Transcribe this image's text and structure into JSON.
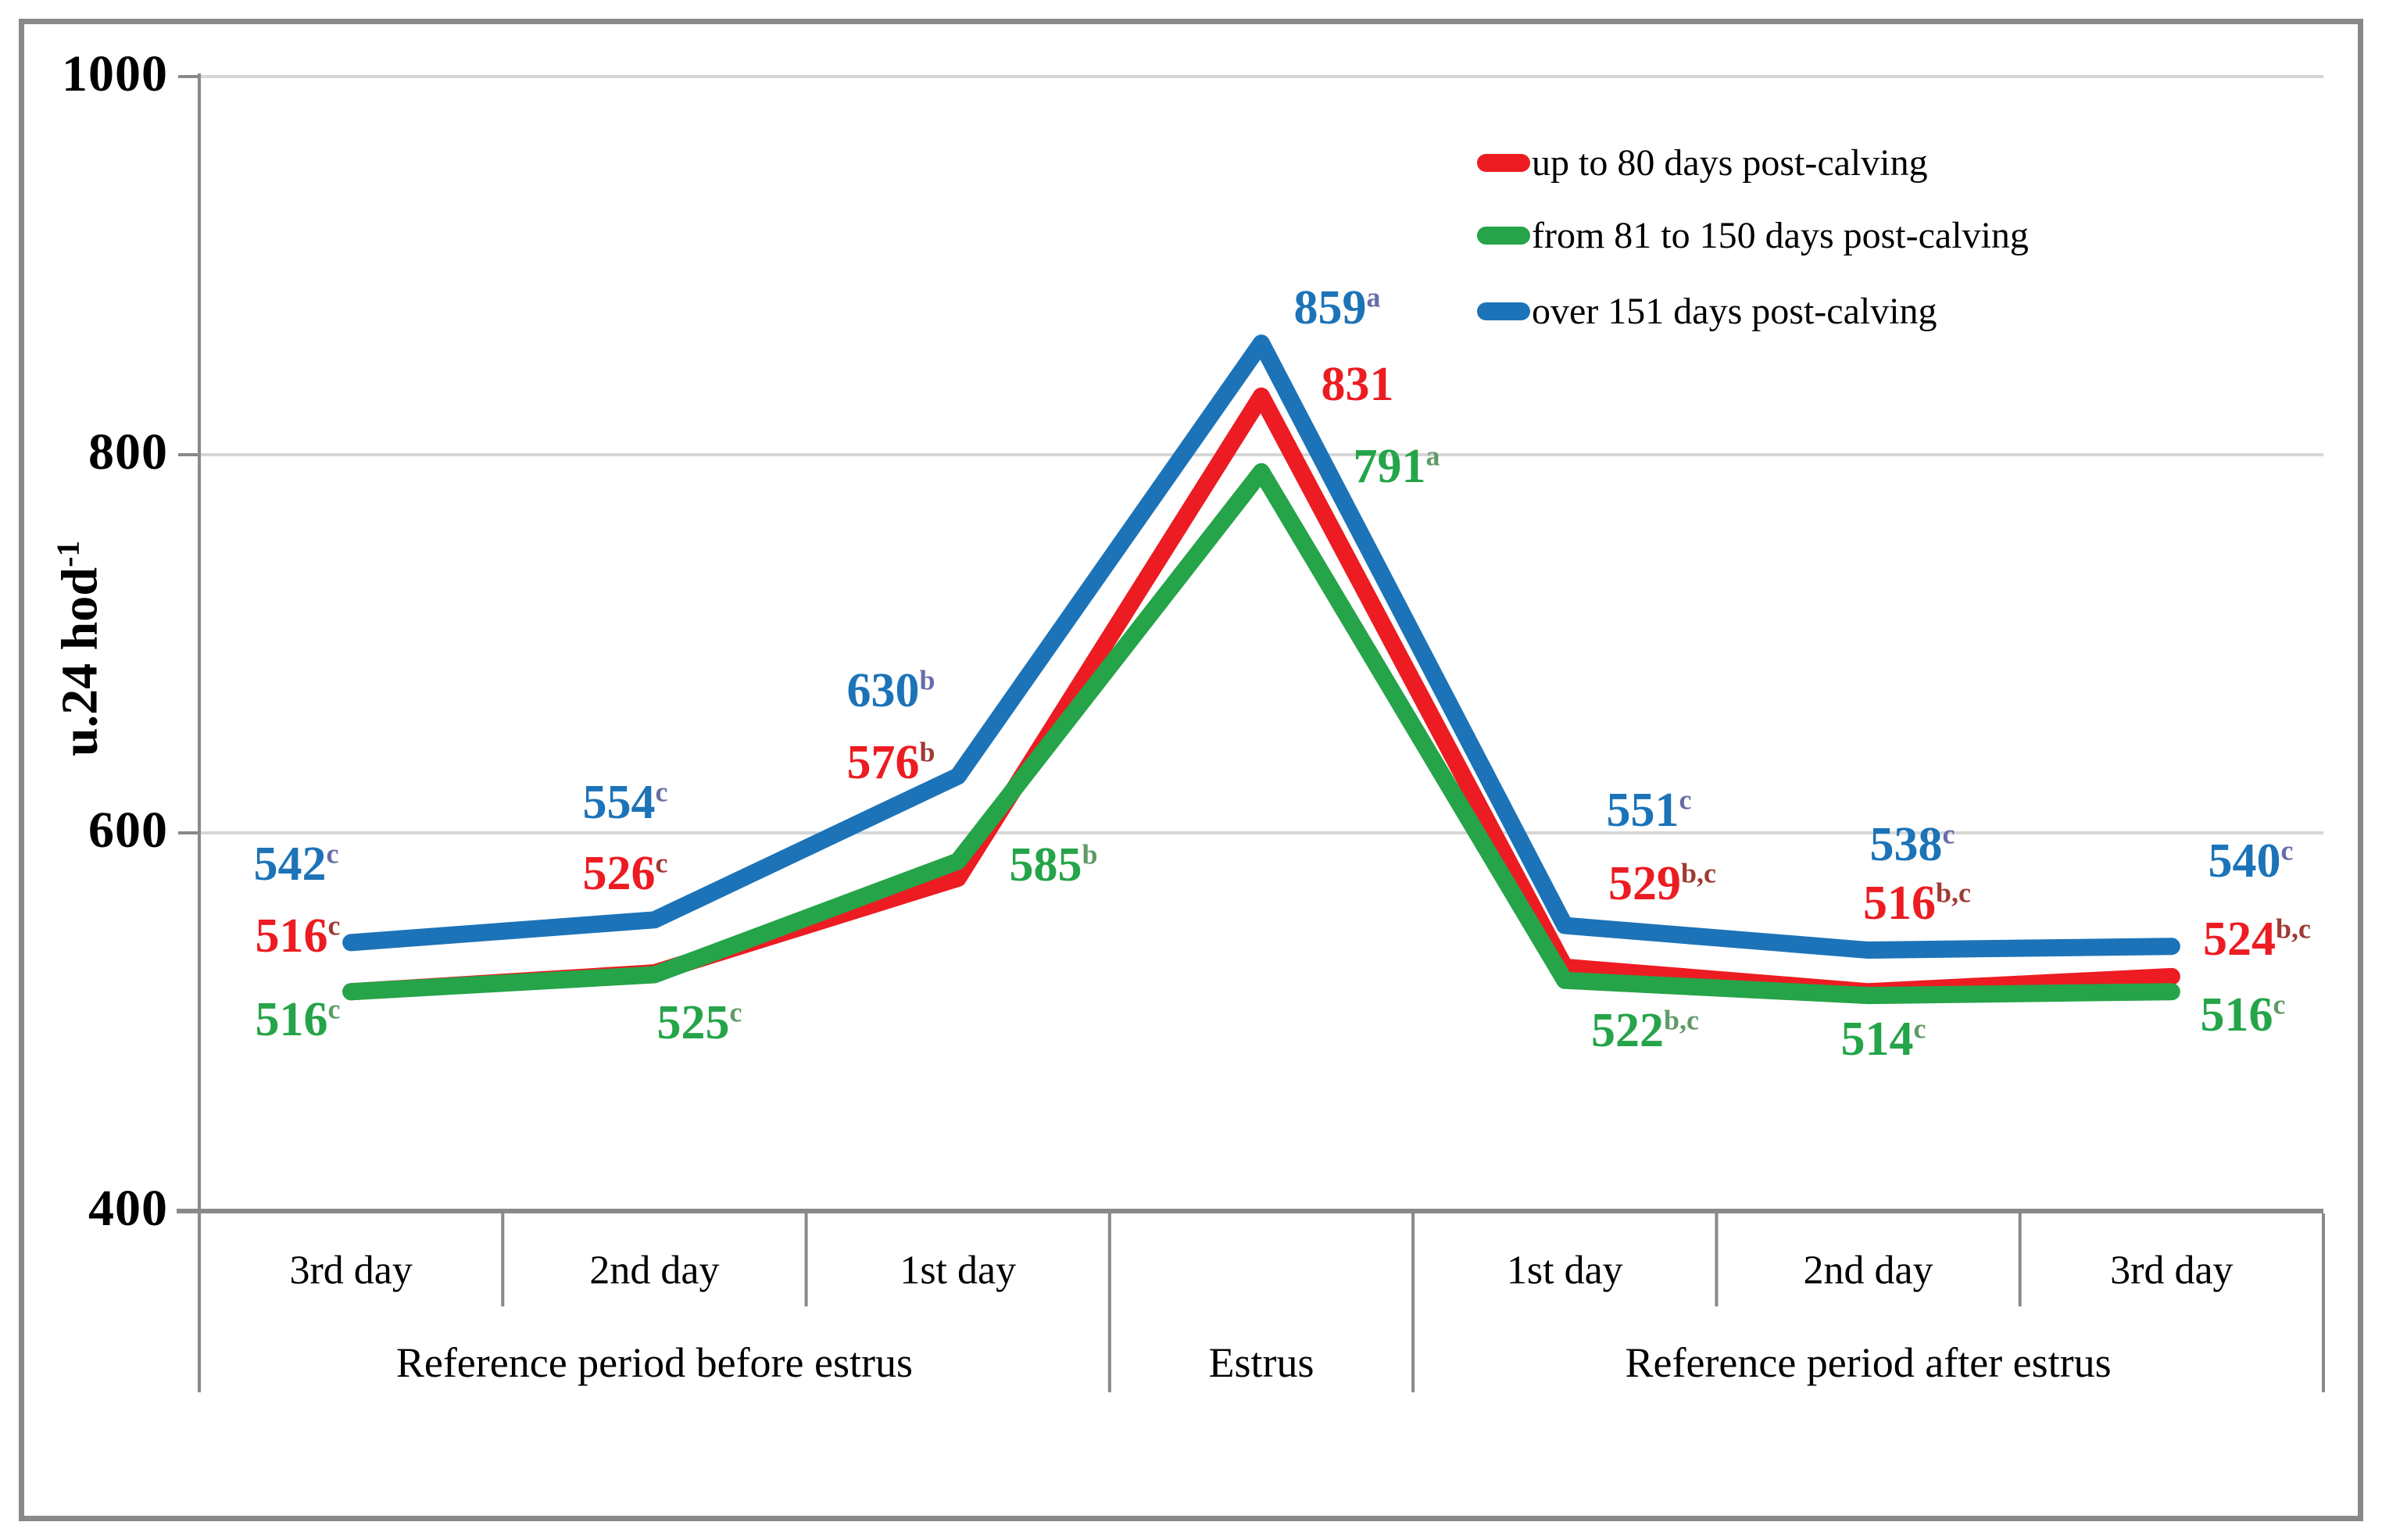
{
  "figure": {
    "background": "#ffffff",
    "border_color": "#898989"
  },
  "y_axis": {
    "title_base": "u.24 hod",
    "title_sup": "-1",
    "min": 400,
    "max": 1000
  },
  "chart_data": {
    "type": "line",
    "title": "",
    "ylabel": "u.24 hod-1",
    "ylim": [
      400,
      1000
    ],
    "yticks": [
      1000,
      800,
      600,
      400
    ],
    "grid": "horizontal gridlines on",
    "legend_position": "inside top-right",
    "categories": [
      "3rd day",
      "2nd day",
      "1st day",
      "",
      "1st day",
      "2nd day",
      "3rd day"
    ],
    "category_groups": [
      {
        "label": "Reference period before estrus",
        "span": [
          0,
          2
        ]
      },
      {
        "label": "Estrus",
        "span": [
          3,
          3
        ]
      },
      {
        "label": "Reference period after estrus",
        "span": [
          4,
          6
        ]
      }
    ],
    "series": [
      {
        "name": "up to 80 days post-calving",
        "color": "#EC1C22",
        "sup_color": "#9E3A33",
        "values": [
          516,
          526,
          576,
          831,
          529,
          516,
          524
        ],
        "sups": [
          "c",
          "c",
          "b",
          "",
          "b,c",
          "b,c",
          "b,c"
        ]
      },
      {
        "name": "from 81 to 150 days post-calving",
        "color": "#25A449",
        "sup_color": "#5F9A68",
        "values": [
          516,
          525,
          585,
          791,
          522,
          514,
          516
        ],
        "sups": [
          "c",
          "c",
          "b",
          "a",
          "b,c",
          "c",
          "c"
        ]
      },
      {
        "name": "over 151 days post-calving",
        "color": "#1C73B8",
        "sup_color": "#686DA8",
        "values": [
          542,
          554,
          630,
          859,
          551,
          538,
          540
        ],
        "sups": [
          "c",
          "c",
          "b",
          "a",
          "c",
          "c",
          "c"
        ]
      }
    ],
    "axis_colors": {
      "gridline": "#D6D6D6",
      "axis_line": "#898989",
      "tick_label_color": "#000000"
    }
  }
}
